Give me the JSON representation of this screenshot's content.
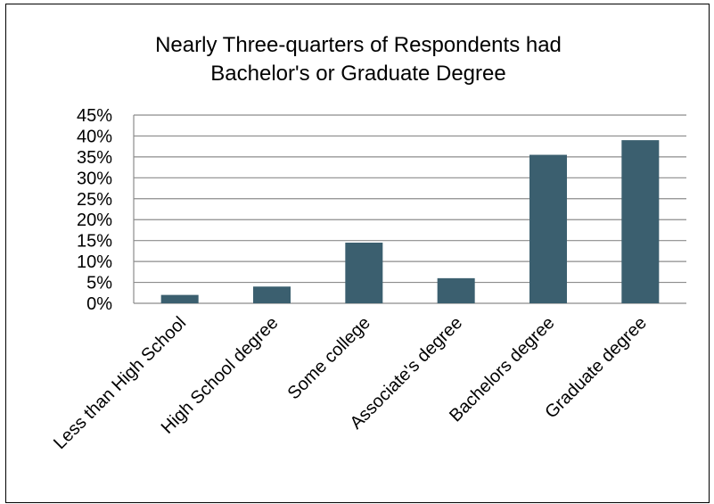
{
  "chart_data": {
    "type": "bar",
    "title_lines": [
      "Nearly Three-quarters of Respondents had",
      "Bachelor's or Graduate Degree"
    ],
    "categories": [
      "Less than High School",
      "High School degree",
      "Some college",
      "Associate's degree",
      "Bachelors degree",
      "Graduate degree"
    ],
    "values": [
      2,
      4,
      14.5,
      6,
      35.5,
      39
    ],
    "value_format": "percent",
    "ylim": [
      0,
      45
    ],
    "yticks": [
      0,
      5,
      10,
      15,
      20,
      25,
      30,
      35,
      40,
      45
    ],
    "ytick_labels": [
      "0%",
      "5%",
      "10%",
      "15%",
      "20%",
      "25%",
      "30%",
      "35%",
      "40%",
      "45%"
    ],
    "grid": true,
    "legend": "none",
    "bar_color": "#3b5f6f",
    "grid_color": "#8c8c8c"
  }
}
